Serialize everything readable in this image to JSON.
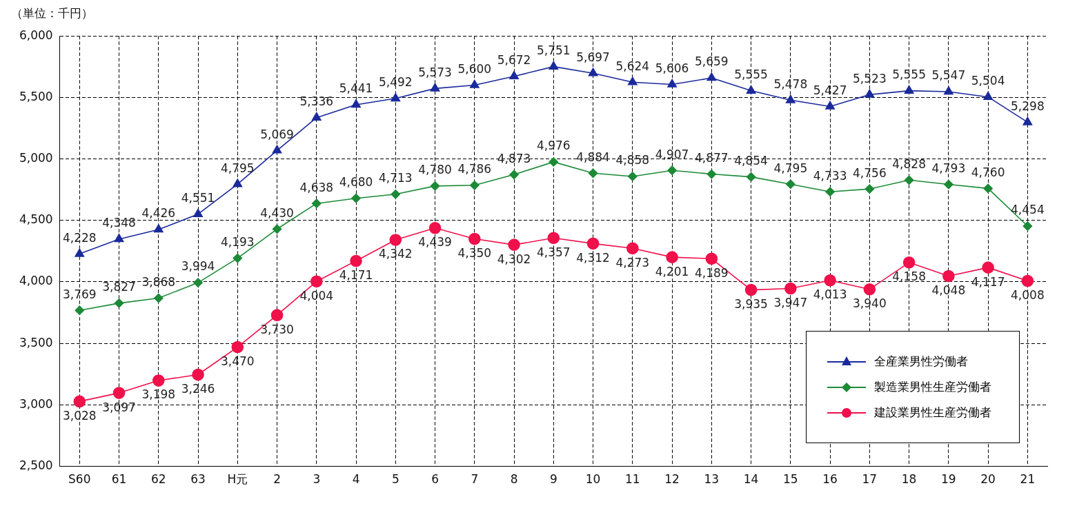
{
  "chart_data": {
    "type": "line",
    "ylabel": "（単位：千円）",
    "categories": [
      "S60",
      "61",
      "62",
      "63",
      "H元",
      "2",
      "3",
      "4",
      "5",
      "6",
      "7",
      "8",
      "9",
      "10",
      "11",
      "12",
      "13",
      "14",
      "15",
      "16",
      "17",
      "18",
      "19",
      "20",
      "21"
    ],
    "series": [
      {
        "name": "全産業男性労働者",
        "color": "#1a2a9c",
        "marker": "triangle",
        "values": [
          4228,
          4348,
          4426,
          4551,
          4795,
          5069,
          5336,
          5441,
          5492,
          5573,
          5600,
          5672,
          5751,
          5697,
          5624,
          5606,
          5659,
          5555,
          5478,
          5427,
          5523,
          5555,
          5547,
          5504,
          5298
        ],
        "value_labels": [
          "4,228",
          "4,348",
          "4,426",
          "4,551",
          "4,795",
          "5,069",
          "5,336",
          "5,441",
          "5,492",
          "5,573",
          "5,600",
          "5,672",
          "5,751",
          "5,697",
          "5,624",
          "5,606",
          "5,659",
          "5,555",
          "5,478",
          "5,427",
          "5,523",
          "5,555",
          "5,547",
          "5,504",
          "5,298"
        ]
      },
      {
        "name": "製造業男性生産労働者",
        "color": "#1c8a36",
        "marker": "diamond",
        "values": [
          3769,
          3827,
          3868,
          3994,
          4193,
          4430,
          4638,
          4680,
          4713,
          4780,
          4786,
          4873,
          4976,
          4884,
          4858,
          4907,
          4877,
          4854,
          4795,
          4733,
          4756,
          4828,
          4793,
          4760,
          4454
        ],
        "value_labels": [
          "3,769",
          "3,827",
          "3,868",
          "3,994",
          "4,193",
          "4,430",
          "4,638",
          "4,680",
          "4,713",
          "4,780",
          "4,786",
          "4,873",
          "4,976",
          "4,884",
          "4,858",
          "4,907",
          "4,877",
          "4,854",
          "4,795",
          "4,733",
          "4,756",
          "4,828",
          "4,793",
          "4,760",
          "4,454"
        ]
      },
      {
        "name": "建設業男性生産労働者",
        "color": "#f0104a",
        "marker": "circle",
        "values": [
          3028,
          3097,
          3198,
          3246,
          3470,
          3730,
          4004,
          4171,
          4342,
          4439,
          4350,
          4302,
          4357,
          4312,
          4273,
          4201,
          4189,
          3935,
          3947,
          4013,
          3940,
          4158,
          4048,
          4117,
          4008
        ],
        "value_labels": [
          "3,028",
          "3,097",
          "3,198",
          "3,246",
          "3,470",
          "3,730",
          "4,004",
          "4,171",
          "4,342",
          "4,439",
          "4,350",
          "4,302",
          "4,357",
          "4,312",
          "4,273",
          "4,201",
          "4,189",
          "3,935",
          "3,947",
          "4,013",
          "3,940",
          "4,158",
          "4,048",
          "4,117",
          "4,008"
        ]
      }
    ],
    "ylim": [
      2500,
      6000
    ],
    "yticks": [
      {
        "value": 2500,
        "label": "2,500"
      },
      {
        "value": 3000,
        "label": "3,000"
      },
      {
        "value": 3500,
        "label": "3,500"
      },
      {
        "value": 4000,
        "label": "4,000"
      },
      {
        "value": 4500,
        "label": "4,500"
      },
      {
        "value": 5000,
        "label": "5,000"
      },
      {
        "value": 5500,
        "label": "5,500"
      },
      {
        "value": 6000,
        "label": "6,000"
      }
    ],
    "grid": true,
    "legend": "bottom right",
    "line_style": "solid"
  }
}
